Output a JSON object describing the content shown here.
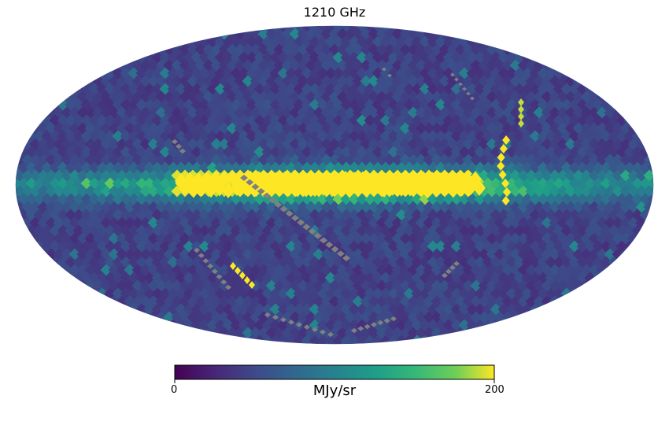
{
  "map": {
    "title": "1210 GHz",
    "projection": "mollweide",
    "colormap": "viridis",
    "bad_value_color": "#808080",
    "colorbar": {
      "min_label": "0",
      "max_label": "200",
      "unit_label": "MJy/sr",
      "vmin": 0,
      "vmax": 200
    }
  }
}
